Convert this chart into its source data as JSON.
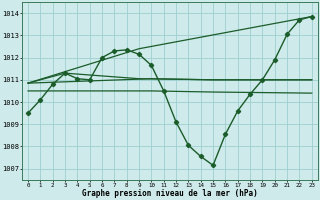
{
  "background_color": "#ceeaea",
  "grid_color": "#9ecfcf",
  "line_color": "#1a5c2a",
  "xlabel": "Graphe pression niveau de la mer (hPa)",
  "ylim": [
    1006.5,
    1014.5
  ],
  "xlim": [
    -0.5,
    23.5
  ],
  "yticks": [
    1007,
    1008,
    1009,
    1010,
    1011,
    1012,
    1013,
    1014
  ],
  "xticks": [
    0,
    1,
    2,
    3,
    4,
    5,
    6,
    7,
    8,
    9,
    10,
    11,
    12,
    13,
    14,
    15,
    16,
    17,
    18,
    19,
    20,
    21,
    22,
    23
  ],
  "series": [
    {
      "x": [
        0,
        1,
        2,
        3,
        4,
        5,
        6,
        7,
        8,
        9,
        10,
        11,
        12,
        13,
        14,
        15,
        16,
        17,
        18,
        19,
        20,
        21,
        22,
        23
      ],
      "y": [
        1009.5,
        1010.1,
        1010.8,
        1011.3,
        1011.05,
        1011.0,
        1012.0,
        1012.3,
        1012.35,
        1012.15,
        1011.65,
        1010.5,
        1009.1,
        1008.05,
        1007.55,
        1007.15,
        1008.55,
        1009.6,
        1010.35,
        1011.0,
        1011.9,
        1013.05,
        1013.7,
        1013.85
      ],
      "marker": "D",
      "markersize": 2.2,
      "linewidth": 1.0
    },
    {
      "x": [
        0,
        9,
        23
      ],
      "y": [
        1010.85,
        1012.4,
        1013.85
      ],
      "marker": null,
      "linewidth": 0.9
    },
    {
      "x": [
        0,
        10,
        15,
        23
      ],
      "y": [
        1010.85,
        1011.05,
        1011.0,
        1011.0
      ],
      "marker": null,
      "linewidth": 0.9
    },
    {
      "x": [
        0,
        10,
        15,
        23
      ],
      "y": [
        1010.5,
        1010.5,
        1010.45,
        1010.4
      ],
      "marker": null,
      "linewidth": 0.9
    },
    {
      "x": [
        0,
        3,
        9,
        15,
        23
      ],
      "y": [
        1010.85,
        1011.3,
        1011.05,
        1011.0,
        1011.0
      ],
      "marker": null,
      "linewidth": 0.9
    }
  ]
}
